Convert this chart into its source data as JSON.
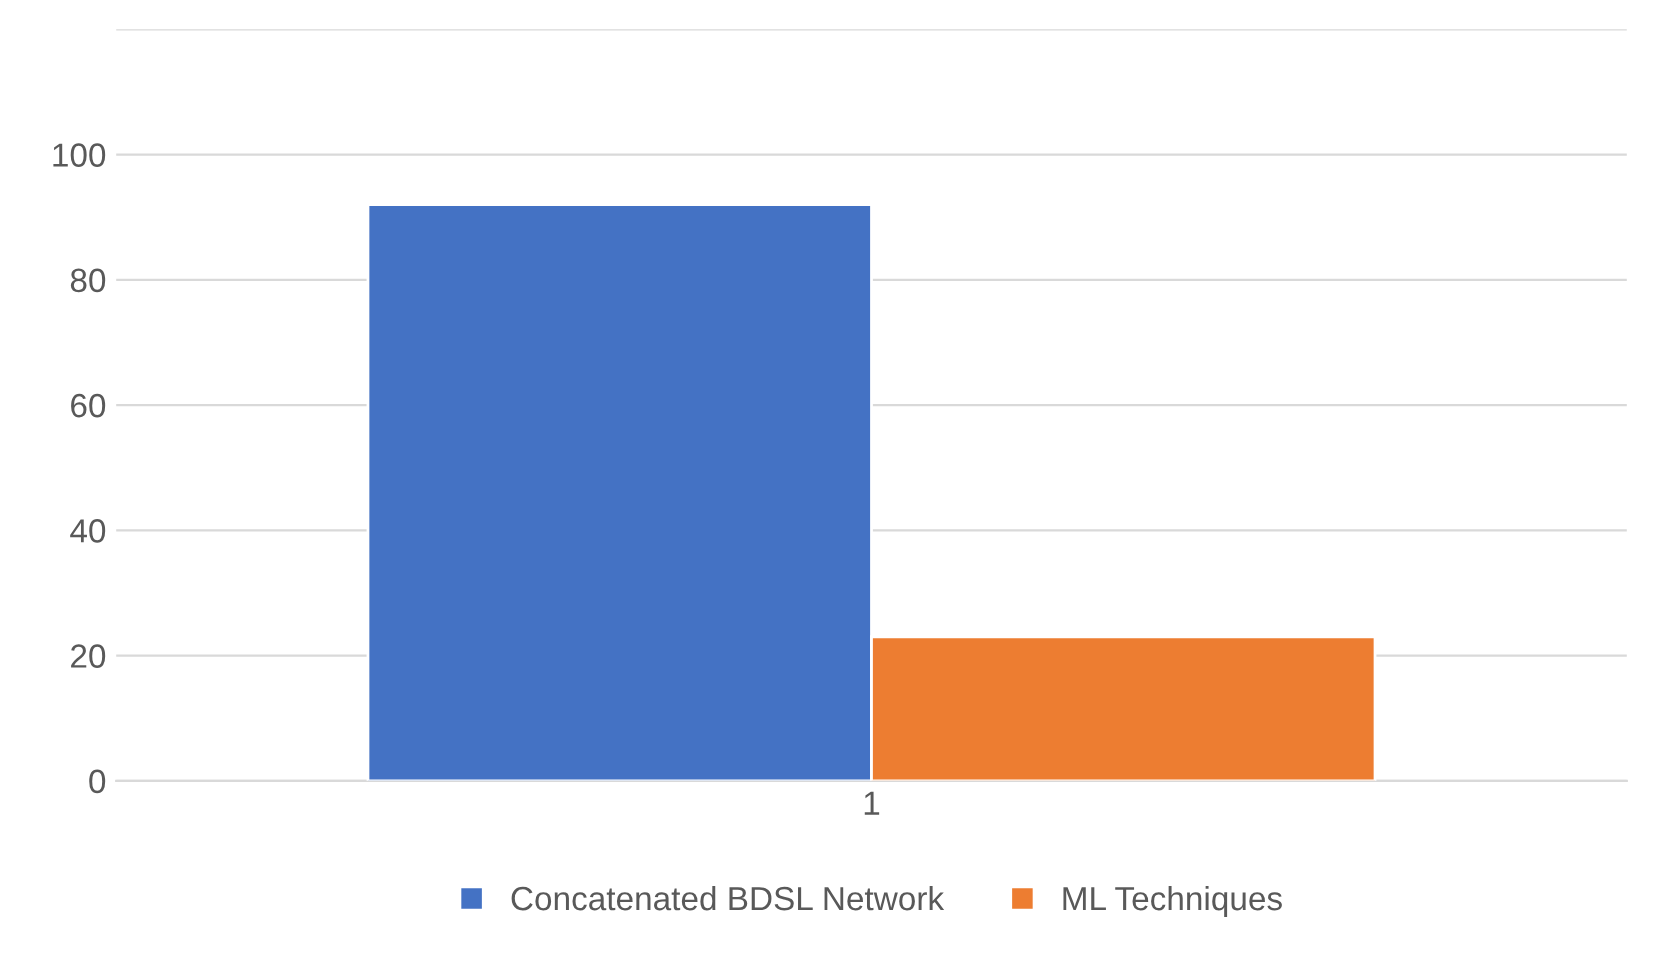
{
  "chart_data": {
    "type": "bar",
    "categories": [
      "1"
    ],
    "series": [
      {
        "name": "Concatenated BDSL Network",
        "color": "#4472c4",
        "values": [
          92
        ]
      },
      {
        "name": "ML Techniques",
        "color": "#ed7d31",
        "values": [
          23
        ]
      }
    ],
    "ylim": [
      0,
      120
    ],
    "yticks": [
      0,
      20,
      40,
      60,
      80,
      100,
      {
        "value": 120,
        "label": null
      }
    ],
    "grid": "y",
    "legend": "bottom"
  }
}
